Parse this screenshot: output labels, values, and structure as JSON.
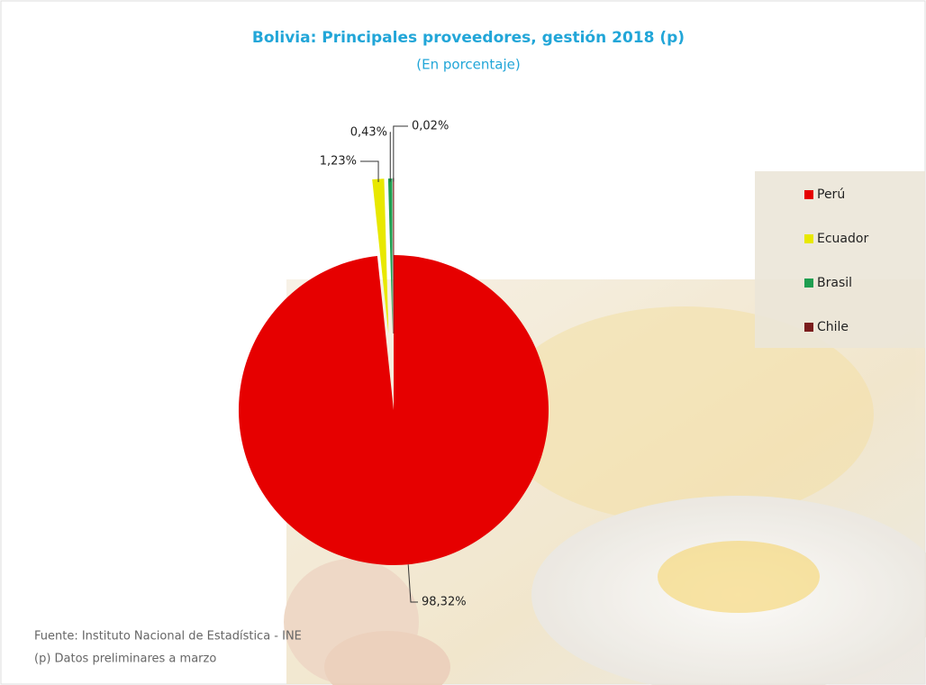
{
  "chart_data": {
    "type": "pie",
    "title": "Bolivia: Principales proveedores, gestión 2018 (p)",
    "subtitle": "(En porcentaje)",
    "categories": [
      "Perú",
      "Ecuador",
      "Brasil",
      "Chile"
    ],
    "values": [
      98.32,
      1.23,
      0.43,
      0.02
    ],
    "value_labels": [
      "98,32%",
      "1,23%",
      "0,43%",
      "0,02%"
    ],
    "colors": [
      "#e60000",
      "#e8e800",
      "#1e9e50",
      "#7a1c1c"
    ],
    "legend": "right",
    "source": "Fuente: Instituto Nacional de Estadística - INE",
    "note": "(p) Datos preliminares a marzo"
  }
}
